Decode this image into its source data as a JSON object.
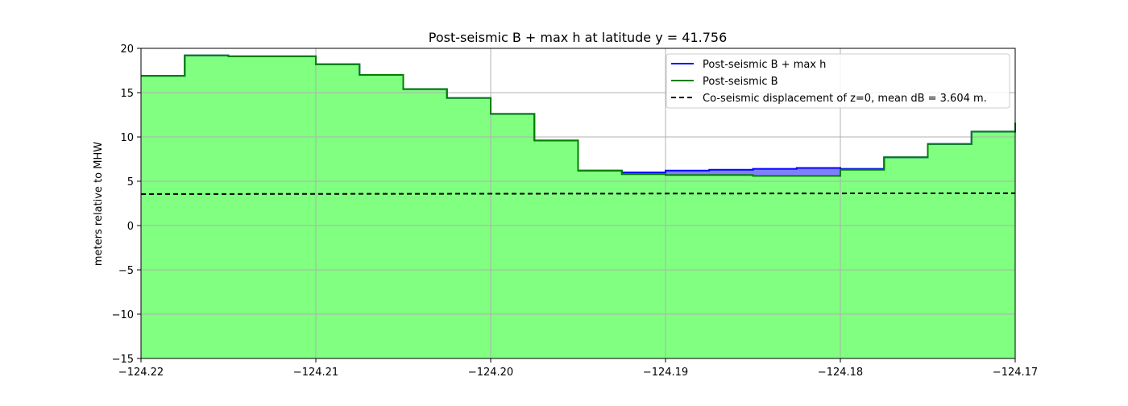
{
  "chart_data": {
    "type": "area",
    "title": "Post-seismic B + max h at latitude y = 41.756",
    "xlabel": "",
    "ylabel": "meters relative to MHW",
    "xlim": [
      -124.22,
      -124.17
    ],
    "ylim": [
      -15,
      20
    ],
    "xticks": [
      -124.22,
      -124.21,
      -124.2,
      -124.19,
      -124.18,
      -124.17
    ],
    "xtick_labels": [
      "−124.22",
      "−124.21",
      "−124.20",
      "−124.19",
      "−124.18",
      "−124.17"
    ],
    "yticks": [
      -15,
      -10,
      -5,
      0,
      5,
      10,
      15,
      20
    ],
    "ytick_labels": [
      "−15",
      "−10",
      "−5",
      "0",
      "5",
      "10",
      "15",
      "20"
    ],
    "grid": true,
    "legend_position": "top-right",
    "step_edges": [
      -124.22,
      -124.2175,
      -124.215,
      -124.2125,
      -124.21,
      -124.2075,
      -124.205,
      -124.2025,
      -124.2,
      -124.1975,
      -124.195,
      -124.1925,
      -124.19,
      -124.1875,
      -124.185,
      -124.1825,
      -124.18,
      -124.1775,
      -124.175,
      -124.1725,
      -124.17
    ],
    "series": [
      {
        "name": "Post-seismic B + max h",
        "color": "#0000ff",
        "fill": "#8080ff",
        "values": [
          16.9,
          19.2,
          19.1,
          19.1,
          18.2,
          17.0,
          15.4,
          14.4,
          12.6,
          9.6,
          6.2,
          6.0,
          6.2,
          6.3,
          6.4,
          6.5,
          6.4,
          7.7,
          9.2,
          10.6,
          11.6
        ]
      },
      {
        "name": "Post-seismic B",
        "color": "#008000",
        "fill": "#80ff80",
        "values": [
          16.9,
          19.2,
          19.1,
          19.1,
          18.2,
          17.0,
          15.4,
          14.4,
          12.6,
          9.6,
          6.2,
          5.8,
          5.7,
          5.7,
          5.6,
          5.6,
          6.3,
          7.7,
          9.2,
          10.6,
          11.6
        ]
      },
      {
        "name": "Co-seismic displacement of z=0, mean dB = 3.604 m.",
        "color": "#000000",
        "style": "dashed",
        "x": [
          -124.22,
          -124.17
        ],
        "values": [
          3.55,
          3.65
        ]
      }
    ]
  }
}
